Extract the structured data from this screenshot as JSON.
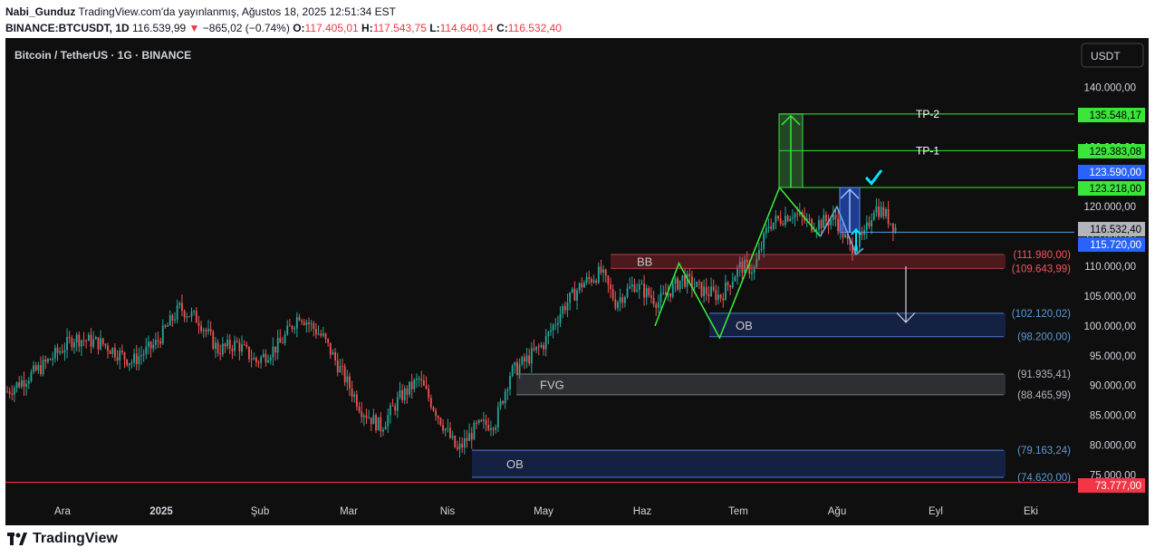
{
  "header": {
    "author": "Nabi_Gunduz",
    "published": "TradingView.com'da yayınlanmış, Ağustos 18, 2025 12:51:34 EST",
    "symbol": "BINANCE:BTCUSDT, 1D",
    "price": "116.539,99",
    "change": "−865,02 (−0.74%)",
    "o_label": "O:",
    "o": "117.405,01",
    "h_label": "H:",
    "h": "117.543,75",
    "l_label": "L:",
    "l": "114.640,14",
    "c_label": "C:",
    "c": "116.532,40"
  },
  "chart_panel": {
    "title": "Bitcoin / TetherUS · 1G · BINANCE",
    "currency_button": "USDT"
  },
  "footer": {
    "brand": "TradingView"
  },
  "colors": {
    "background": "#0f0f0f",
    "up": "#26a69a",
    "down": "#ef5350",
    "green_line": "#39e639",
    "blue_line": "#5b9bd5",
    "red_line": "#f23645"
  },
  "chart_data": {
    "type": "candlestick",
    "ylim": [
      72000,
      146000
    ],
    "x_ticks": [
      "Ara",
      "2025",
      "Şub",
      "Mar",
      "Nis",
      "May",
      "Haz",
      "Tem",
      "Ağu",
      "Eyl",
      "Eki"
    ],
    "y_ticks": [
      "140.000,00",
      "130.000,00",
      "120.000,00",
      "115.000,00",
      "110.000,00",
      "105.000,00",
      "100.000,00",
      "95.000,00",
      "90.000,00",
      "85.000,00",
      "80.000,00",
      "75.000,00"
    ],
    "y_tick_values": [
      140000,
      130000,
      120000,
      115000,
      110000,
      105000,
      100000,
      95000,
      90000,
      85000,
      80000,
      75000
    ],
    "price_trend": [
      [
        0,
        89000
      ],
      [
        14,
        93000
      ],
      [
        28,
        98000
      ],
      [
        40,
        97000
      ],
      [
        52,
        94000
      ],
      [
        62,
        97000
      ],
      [
        72,
        103000
      ],
      [
        80,
        101000
      ],
      [
        88,
        96000
      ],
      [
        96,
        97000
      ],
      [
        104,
        94000
      ],
      [
        114,
        97000
      ],
      [
        122,
        102000
      ],
      [
        132,
        98000
      ],
      [
        140,
        92000
      ],
      [
        148,
        86000
      ],
      [
        156,
        83000
      ],
      [
        164,
        88000
      ],
      [
        172,
        91000
      ],
      [
        180,
        85000
      ],
      [
        188,
        79000
      ],
      [
        196,
        83000
      ],
      [
        204,
        84000
      ],
      [
        210,
        92000
      ],
      [
        216,
        94000
      ],
      [
        224,
        97000
      ],
      [
        232,
        103000
      ],
      [
        240,
        107000
      ],
      [
        248,
        109000
      ],
      [
        254,
        104000
      ],
      [
        262,
        107000
      ],
      [
        272,
        104000
      ],
      [
        282,
        108000
      ],
      [
        290,
        106000
      ],
      [
        298,
        105000
      ],
      [
        306,
        110000
      ],
      [
        312,
        109500
      ],
      [
        318,
        117000
      ],
      [
        328,
        119000
      ],
      [
        336,
        117000
      ],
      [
        346,
        118000
      ],
      [
        352,
        113000
      ],
      [
        358,
        115000
      ],
      [
        362,
        120000
      ],
      [
        366,
        119000
      ],
      [
        371,
        116500
      ]
    ],
    "levels": [
      {
        "label": "TP-2",
        "price": "135.548,17",
        "value": 135548,
        "style": "green"
      },
      {
        "label": "TP-1",
        "price": "129.383,08",
        "value": 129383,
        "style": "green"
      },
      {
        "label": "",
        "price": "123.218,00",
        "value": 123218,
        "style": "green"
      },
      {
        "label": "",
        "price": "123.590,00",
        "value": 123590,
        "style": "blue"
      },
      {
        "label": "",
        "price": "115.720,00",
        "value": 115720,
        "style": "blue"
      },
      {
        "label": "",
        "price": "116.532,40",
        "value": 116532,
        "style": "gray"
      },
      {
        "label": "",
        "price": "73.777,00",
        "value": 73777,
        "style": "red"
      }
    ],
    "zones": [
      {
        "label": "BB",
        "top": 111980,
        "bottom": 109643,
        "top_text": "(111.980,00)",
        "bottom_text": "(109.643,99)",
        "style": "red"
      },
      {
        "label": "OB",
        "top": 102120,
        "bottom": 98200,
        "top_text": "(102.120,02)",
        "bottom_text": "(98.200,00)",
        "style": "blue"
      },
      {
        "label": "FVG",
        "top": 91935,
        "bottom": 88466,
        "top_text": "(91.935,41)",
        "bottom_text": "(88.465,99)",
        "style": "gray"
      },
      {
        "label": "OB",
        "top": 79163,
        "bottom": 74620,
        "top_text": "(79.163,24)",
        "bottom_text": "(74.620,00)",
        "style": "blue"
      }
    ],
    "pattern": [
      [
        266,
        100000
      ],
      [
        276,
        110500
      ],
      [
        293,
        98000
      ],
      [
        318,
        123218
      ],
      [
        335,
        115000
      ],
      [
        342,
        120000
      ],
      [
        350,
        112000
      ],
      [
        353,
        113000
      ]
    ]
  }
}
